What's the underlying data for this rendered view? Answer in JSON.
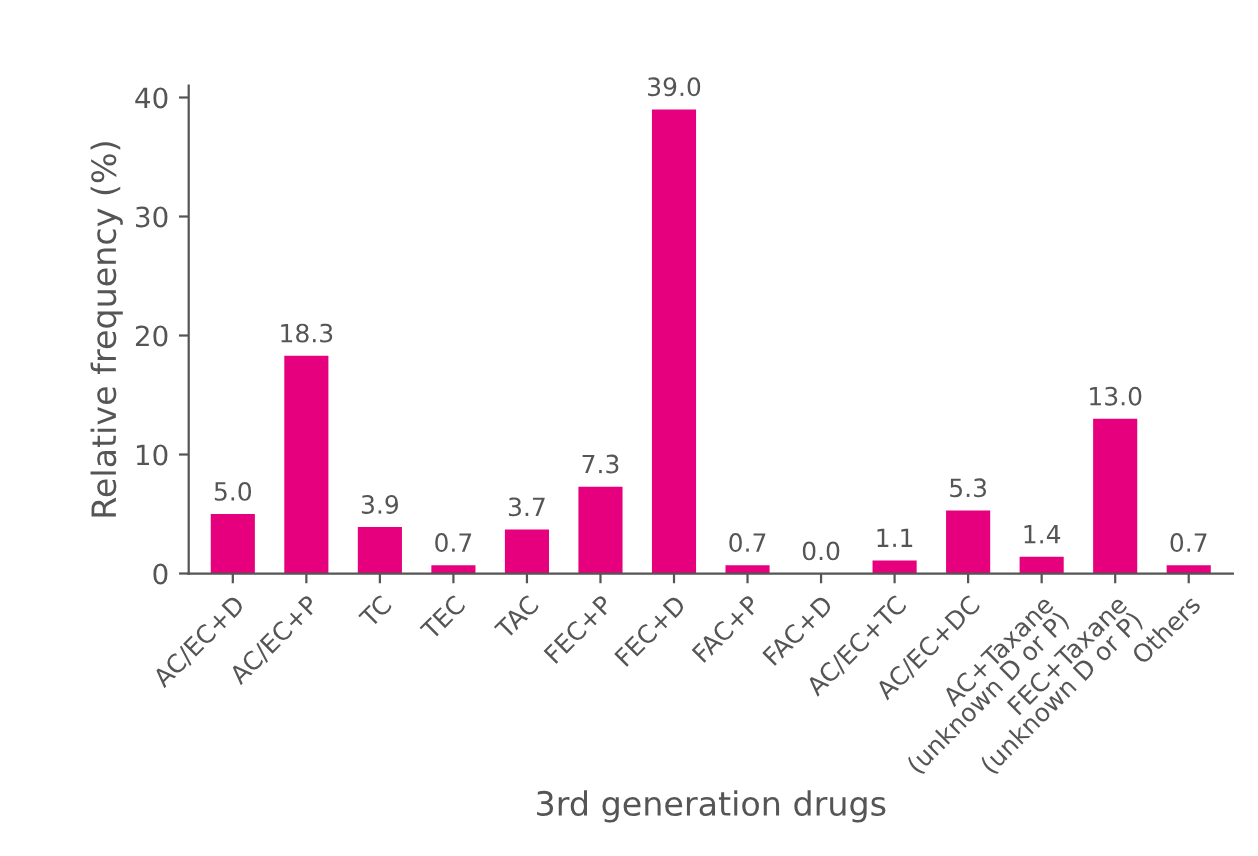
{
  "chart_data": {
    "type": "bar",
    "xlabel": "3rd generation drugs",
    "ylabel": "Relative frequency (%)",
    "categories": [
      "AC/EC+D",
      "AC/EC+P",
      "TC",
      "TEC",
      "TAC",
      "FEC+P",
      "FEC+D",
      "FAC+P",
      "FAC+D",
      "AC/EC+TC",
      "AC/EC+DC",
      "AC+Taxane\n(unknown D or P)",
      "FEC+Taxane\n(unknown D or P)",
      "Others"
    ],
    "values": [
      5.0,
      18.3,
      3.9,
      0.7,
      3.7,
      7.3,
      39.0,
      0.7,
      0.0,
      1.1,
      5.3,
      1.4,
      13.0,
      0.7
    ],
    "value_labels": [
      "5.0",
      "18.3",
      "3.9",
      "0.7",
      "3.7",
      "7.3",
      "39.0",
      "0.7",
      "0.0",
      "1.1",
      "5.3",
      "1.4",
      "13.0",
      "0.7"
    ],
    "color": "#e6007e",
    "ylim": [
      0,
      41
    ],
    "yticks": [
      0,
      10,
      20,
      30,
      40
    ],
    "grid": false,
    "legend": false
  }
}
